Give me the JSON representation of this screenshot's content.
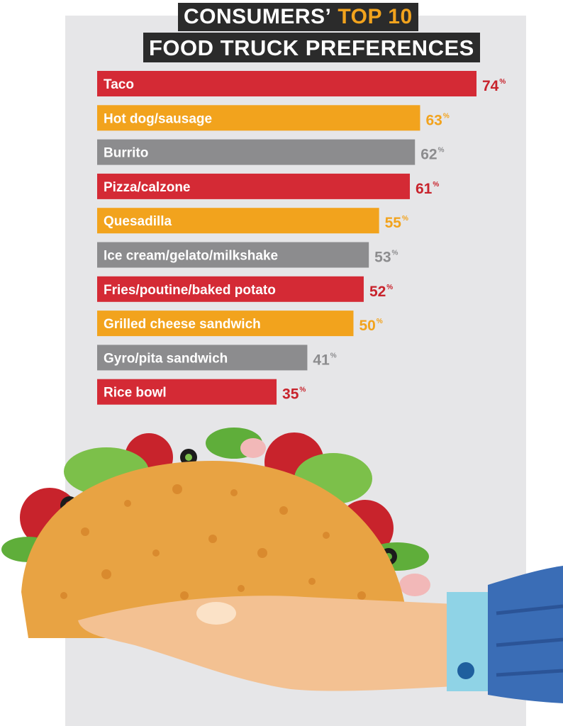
{
  "header": {
    "line1_main": "CONSUMERS’",
    "line1_accent": "TOP 10",
    "line2": "FOOD TRUCK PREFERENCES"
  },
  "colors": {
    "red": "#d42a35",
    "orange": "#f2a31d",
    "gray": "#8c8c8e",
    "panel": "#e6e6e8",
    "title_bg": "#2b2b2b"
  },
  "chart_data": {
    "type": "bar",
    "orientation": "horizontal",
    "title": "CONSUMERS’ TOP 10 FOOD TRUCK PREFERENCES",
    "categories": [
      "Taco",
      "Hot dog/sausage",
      "Burrito",
      "Pizza/calzone",
      "Quesadilla",
      "Ice cream/gelato/milkshake",
      "Fries/poutine/baked potato",
      "Grilled cheese sandwich",
      "Gyro/pita sandwich",
      "Rice bowl"
    ],
    "values": [
      74,
      63,
      62,
      61,
      55,
      53,
      52,
      50,
      41,
      35
    ],
    "value_suffix": "%",
    "bar_colors": [
      "red",
      "orange",
      "gray",
      "red",
      "orange",
      "gray",
      "red",
      "orange",
      "gray",
      "red"
    ],
    "xlim": [
      0,
      74
    ],
    "grid": false,
    "legend": "none"
  }
}
